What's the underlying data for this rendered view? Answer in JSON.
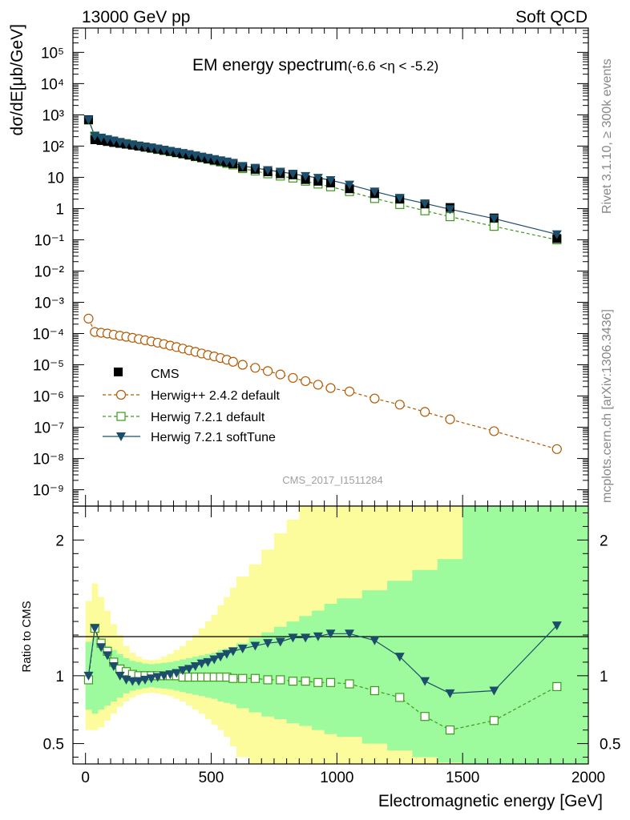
{
  "header": {
    "left": "13000 GeV pp",
    "right": "Soft QCD"
  },
  "side_labels": {
    "rivet": "Rivet 3.1.10, ≥ 300k events",
    "mcplots": "mcplots.cern.ch [arXiv:1306.3436]"
  },
  "chart_data": [
    {
      "type": "scatter",
      "title": "EM energy spectrum",
      "title_suffix": "(-6.6 <η < -5.2)",
      "ylabel": "dσ/dE[μb/GeV]",
      "yscale": "log",
      "ylim": [
        3e-10,
        600000.0
      ],
      "xlim": [
        -50,
        2000
      ],
      "y_tick_labels": [
        "10⁵",
        "10⁴",
        "10³",
        "10²",
        "10",
        "1",
        "10⁻¹",
        "10⁻²",
        "10⁻³",
        "10⁻⁴",
        "10⁻⁵",
        "10⁻⁶",
        "10⁻⁷",
        "10⁻⁸",
        "10⁻⁹"
      ],
      "watermark": "CMS_2017_I1511284",
      "legend_position": "lower-left",
      "x": [
        12,
        37,
        62,
        87,
        112,
        137,
        162,
        187,
        212,
        237,
        262,
        287,
        312,
        337,
        362,
        387,
        412,
        437,
        462,
        487,
        512,
        537,
        562,
        587,
        625,
        675,
        725,
        775,
        825,
        875,
        925,
        975,
        1050,
        1150,
        1250,
        1350,
        1450,
        1625,
        1875
      ],
      "series": [
        {
          "name": "CMS",
          "values": [
            700,
            160,
            150,
            140,
            130,
            122,
            115,
            107,
            100,
            93,
            87,
            80,
            74,
            68,
            62,
            57,
            52,
            47,
            43,
            39,
            36,
            33,
            30,
            27,
            21,
            18,
            15,
            13,
            12,
            8.5,
            7.5,
            6.6,
            4.3,
            3.0,
            2.0,
            1.4,
            1.08,
            0.5,
            0.11
          ]
        },
        {
          "name": "Herwig++ 2.4.2 default",
          "values": [
            0.0003,
            0.000112,
            0.000106,
            0.0001,
            9.2e-05,
            8.5e-05,
            7.9e-05,
            7.3e-05,
            6.7e-05,
            6.1e-05,
            5.6e-05,
            5.1e-05,
            4.6e-05,
            4.1e-05,
            3.7e-05,
            3.3e-05,
            2.9e-05,
            2.6e-05,
            2.3e-05,
            2.05e-05,
            1.85e-05,
            1.65e-05,
            1.45e-05,
            1.25e-05,
            1e-05,
            8e-06,
            6.3e-06,
            4.9e-06,
            3.8e-06,
            3e-06,
            2.3e-06,
            1.8e-06,
            1.4e-06,
            8.3e-07,
            5.3e-07,
            3.1e-07,
            1.8e-07,
            7.5e-08,
            2e-08
          ]
        },
        {
          "name": "Herwig 7.2.1 default",
          "values": [
            680,
            210,
            180,
            160,
            145,
            130,
            120,
            110,
            100,
            92,
            85,
            78,
            72,
            66,
            61,
            56,
            51,
            46,
            42,
            38,
            34,
            31,
            28,
            25,
            19,
            16,
            13,
            11,
            9.5,
            7.5,
            6.1,
            5.0,
            3.5,
            2.1,
            1.35,
            0.85,
            0.55,
            0.27,
            0.1
          ]
        },
        {
          "name": "Herwig 7.2.1 softTune",
          "values": [
            700,
            210,
            185,
            165,
            150,
            135,
            120,
            110,
            102,
            95,
            88,
            82,
            76,
            70,
            65,
            60,
            55,
            50,
            46,
            42,
            38,
            35,
            32,
            29,
            23,
            20,
            17,
            15,
            13,
            11,
            9.6,
            8.1,
            5.8,
            3.5,
            2.2,
            1.45,
            0.95,
            0.48,
            0.15
          ]
        }
      ]
    },
    {
      "type": "line",
      "ylabel": "Ratio to CMS",
      "xlabel": "Electromagnetic energy [GeV]",
      "ylim": [
        0.35,
        2.25
      ],
      "xlim": [
        -50,
        2000
      ],
      "y_ticks": [
        0.5,
        1,
        2
      ],
      "x_ticks": [
        0,
        500,
        1000,
        1500,
        2000
      ],
      "x": [
        12,
        37,
        62,
        87,
        112,
        137,
        162,
        187,
        212,
        237,
        262,
        287,
        312,
        337,
        362,
        387,
        412,
        437,
        462,
        487,
        512,
        537,
        562,
        587,
        625,
        675,
        725,
        775,
        825,
        875,
        925,
        975,
        1050,
        1150,
        1250,
        1350,
        1450,
        1625,
        1875
      ],
      "band_edges": [
        0,
        25,
        50,
        75,
        100,
        125,
        150,
        175,
        200,
        225,
        250,
        275,
        300,
        325,
        350,
        375,
        400,
        425,
        450,
        475,
        500,
        525,
        550,
        575,
        600,
        650,
        700,
        750,
        800,
        850,
        900,
        950,
        1000,
        1100,
        1200,
        1300,
        1400,
        1500,
        1750,
        2000
      ],
      "band_inner_lo": [
        0.75,
        0.72,
        0.75,
        0.78,
        0.81,
        0.84,
        0.87,
        0.89,
        0.9,
        0.91,
        0.915,
        0.91,
        0.905,
        0.9,
        0.89,
        0.88,
        0.87,
        0.86,
        0.85,
        0.84,
        0.83,
        0.81,
        0.8,
        0.79,
        0.76,
        0.73,
        0.7,
        0.68,
        0.65,
        0.63,
        0.6,
        0.57,
        0.55,
        0.5,
        0.45,
        0.4,
        0.36,
        0.33,
        0.33
      ],
      "band_inner_hi": [
        1.25,
        1.28,
        1.25,
        1.22,
        1.19,
        1.16,
        1.13,
        1.11,
        1.1,
        1.09,
        1.085,
        1.09,
        1.095,
        1.1,
        1.11,
        1.12,
        1.13,
        1.14,
        1.15,
        1.16,
        1.17,
        1.19,
        1.2,
        1.21,
        1.24,
        1.28,
        1.32,
        1.36,
        1.4,
        1.44,
        1.48,
        1.53,
        1.57,
        1.63,
        1.7,
        1.78,
        1.86,
        2.25,
        2.25
      ],
      "band_outer_lo": [
        0.6,
        0.6,
        0.62,
        0.67,
        0.72,
        0.77,
        0.81,
        0.84,
        0.86,
        0.87,
        0.875,
        0.87,
        0.86,
        0.85,
        0.83,
        0.81,
        0.78,
        0.75,
        0.72,
        0.68,
        0.64,
        0.6,
        0.55,
        0.48,
        0.4,
        0.33,
        0.33,
        0.33,
        0.33,
        0.33,
        0.33,
        0.33,
        0.33,
        0.33,
        0.33,
        0.33,
        0.33,
        0.33,
        0.33
      ],
      "band_outer_hi": [
        1.55,
        1.68,
        1.58,
        1.48,
        1.38,
        1.3,
        1.22,
        1.17,
        1.14,
        1.12,
        1.115,
        1.12,
        1.14,
        1.16,
        1.19,
        1.22,
        1.26,
        1.3,
        1.35,
        1.4,
        1.45,
        1.52,
        1.58,
        1.65,
        1.73,
        1.82,
        1.93,
        2.05,
        2.15,
        2.25,
        2.25,
        2.25,
        2.25,
        2.25,
        2.25,
        2.25,
        2.25,
        2.25,
        2.25
      ],
      "series": [
        {
          "name": "Herwig 7.2.1 default",
          "values": [
            0.97,
            1.35,
            1.24,
            1.18,
            1.1,
            1.05,
            1.03,
            1.01,
            1.0,
            1.0,
            1.0,
            1.0,
            1.0,
            1.0,
            1.0,
            0.99,
            0.99,
            0.99,
            0.99,
            0.99,
            0.99,
            0.99,
            0.99,
            0.98,
            0.98,
            0.98,
            0.97,
            0.97,
            0.96,
            0.96,
            0.95,
            0.95,
            0.94,
            0.89,
            0.84,
            0.7,
            0.6,
            0.67,
            0.92
          ]
        },
        {
          "name": "Herwig 7.2.1 softTune",
          "values": [
            1.0,
            1.35,
            1.21,
            1.15,
            1.07,
            1.0,
            0.97,
            0.96,
            0.96,
            0.97,
            0.98,
            0.99,
            1.0,
            1.01,
            1.02,
            1.04,
            1.05,
            1.07,
            1.09,
            1.1,
            1.12,
            1.14,
            1.16,
            1.18,
            1.2,
            1.22,
            1.24,
            1.25,
            1.28,
            1.28,
            1.29,
            1.31,
            1.31,
            1.26,
            1.14,
            0.96,
            0.87,
            0.89,
            1.37
          ]
        }
      ]
    }
  ],
  "colors": {
    "cms": "#000000",
    "herwigpp": "#b35900",
    "h7default": "#3d9a1b",
    "h7softtune": "#1c4e6b",
    "band_inner": "#9dfb9d",
    "band_outer": "#fcfc9c"
  }
}
